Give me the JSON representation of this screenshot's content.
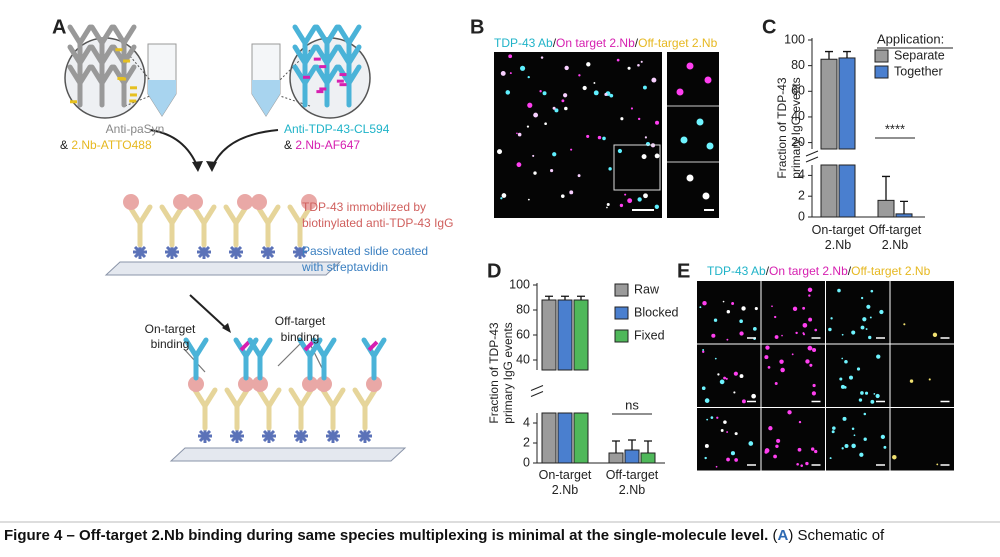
{
  "panel_a": {
    "label": "A",
    "left_reagents": [
      "Anti-paSyn",
      "&",
      "2.Nb-ATTO488"
    ],
    "right_reagents": [
      "Anti-TDP-43-CL594",
      "&",
      "2.Nb-AF647"
    ],
    "immobilized": [
      "TDP-43 immobilized by",
      "biotinylated anti-TDP-43 IgG"
    ],
    "slide": [
      "Passivated slide coated",
      "with streptavidin"
    ],
    "on_target": [
      "On-target",
      "binding"
    ],
    "off_target": [
      "Off-target",
      "binding"
    ]
  },
  "panel_b": {
    "label": "B",
    "title": [
      "TDP-43 Ab",
      "/",
      "On target 2.Nb",
      "/",
      "Off-target 2.Nb"
    ]
  },
  "chart_data": [
    {
      "type": "bar",
      "label": "C",
      "y_label": [
        "Fraction of TDP-43",
        "primary IgG events"
      ],
      "categories": [
        "On-target 2.Nb",
        "Off-target 2.Nb"
      ],
      "legend_title": "Application:",
      "series": [
        {
          "name": "Separate",
          "color": "#9b9b9b",
          "values": [
            85,
            1.6
          ],
          "errors": [
            6,
            2.3
          ]
        },
        {
          "name": "Together",
          "color": "#4a7fcf",
          "values": [
            86,
            0.3
          ],
          "errors": [
            5,
            1.2
          ]
        }
      ],
      "ylim": [
        0,
        100
      ],
      "y_break": [
        5,
        15
      ],
      "yticks": [
        0,
        2,
        4,
        20,
        40,
        60,
        80,
        100
      ],
      "annotation": {
        "text": "****",
        "category": 1
      }
    },
    {
      "type": "bar",
      "label": "D",
      "y_label": [
        "Fraction of TDP-43",
        "primary IgG events"
      ],
      "categories": [
        "On-target 2.Nb",
        "Off-target 2.Nb"
      ],
      "series": [
        {
          "name": "Raw",
          "color": "#9b9b9b",
          "values": [
            88,
            1.0
          ],
          "errors": [
            3,
            1.2
          ]
        },
        {
          "name": "Blocked",
          "color": "#4a7fcf",
          "values": [
            88,
            1.3
          ],
          "errors": [
            3,
            1.0
          ]
        },
        {
          "name": "Fixed",
          "color": "#4fb85a",
          "values": [
            88,
            1.0
          ],
          "errors": [
            3,
            1.2
          ]
        }
      ],
      "ylim": [
        0,
        100
      ],
      "y_break": [
        5,
        32
      ],
      "yticks": [
        0,
        2,
        4,
        40,
        60,
        80,
        100
      ],
      "annotation": {
        "text": "ns",
        "category": 1
      }
    }
  ],
  "panel_e": {
    "label": "E",
    "title": [
      "TDP-43 Ab",
      "/",
      "On target 2.Nb",
      "/",
      "Off-target 2.Nb"
    ]
  },
  "caption": {
    "bold": "Figure 4 – Off-target 2.Nb binding during same species multiplexing is minimal at the single-molecule level.",
    "open": " (",
    "ref": "A",
    "close": ") Schematic of"
  }
}
